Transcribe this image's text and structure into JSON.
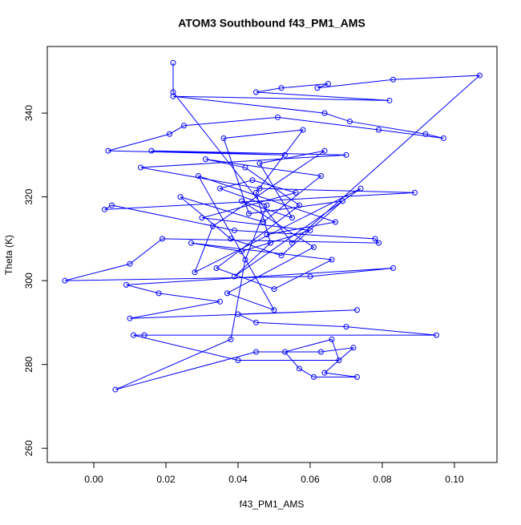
{
  "chart_data": {
    "type": "line",
    "markers": "open-circle",
    "color": "#0000ff",
    "title": "ATOM3 Southbound f43_PM1_AMS",
    "x_label": "f43_PM1_AMS",
    "y_label": "Theta (K)",
    "xlim": [
      -0.0129,
      0.1118
    ],
    "ylim": [
      256.6,
      355.9
    ],
    "xticks": [
      {
        "value": 0,
        "label": "0.00"
      },
      {
        "value": 0.02,
        "label": "0.02"
      },
      {
        "value": 0.04,
        "label": "0.04"
      },
      {
        "value": 0.06,
        "label": "0.06"
      },
      {
        "value": 0.08,
        "label": "0.08"
      },
      {
        "value": 0.1,
        "label": "0.10"
      }
    ],
    "yticks": [
      260,
      280,
      300,
      320,
      340
    ],
    "grid": false,
    "x": [
      0.022,
      0.022,
      0.055,
      0.107,
      0.083,
      0.062,
      0.065,
      0.052,
      0.045,
      0.082,
      0.022,
      0.064,
      0.071,
      0.092,
      0.097,
      0.079,
      0.051,
      0.025,
      0.021,
      0.004,
      0.053,
      0.016,
      0.07,
      0.013,
      0.046,
      0.089,
      0.003,
      0.005,
      0.039,
      0.078,
      0.079,
      0.019,
      0.01,
      -0.008,
      0.06,
      0.083,
      0.009,
      0.018,
      0.035,
      0.01,
      0.073,
      0.04,
      0.045,
      0.07,
      0.095,
      0.014,
      0.011,
      0.04,
      0.068,
      0.066,
      0.053,
      0.057,
      0.061,
      0.073,
      0.064,
      0.072,
      0.063,
      0.045,
      0.006,
      0.038,
      0.042,
      0.048,
      0.035,
      0.044,
      0.056,
      0.03,
      0.06,
      0.041,
      0.027,
      0.066,
      0.05,
      0.034,
      0.057,
      0.042,
      0.031,
      0.063,
      0.047,
      0.024,
      0.038,
      0.052,
      0.069,
      0.043,
      0.036,
      0.058,
      0.045,
      0.049,
      0.039,
      0.074,
      0.028,
      0.033,
      0.064,
      0.046,
      0.055,
      0.041,
      0.061,
      0.037,
      0.05,
      0.029,
      0.067,
      0.048
    ],
    "values": [
      352,
      345,
      309,
      349,
      348,
      346,
      347,
      346,
      345,
      343,
      344,
      340,
      338,
      335,
      334,
      336,
      339,
      337,
      335,
      331,
      330,
      331,
      330,
      327,
      322,
      321,
      317,
      318,
      312,
      310,
      309,
      310,
      304,
      300,
      301,
      303,
      299,
      297,
      295,
      291,
      293,
      292,
      290,
      289,
      287,
      287,
      287,
      281,
      281,
      286,
      283,
      279,
      277,
      277,
      278,
      284,
      283,
      283,
      274,
      286,
      305,
      318,
      322,
      324,
      321,
      315,
      312,
      307,
      309,
      305,
      298,
      303,
      318,
      327,
      329,
      325,
      314,
      320,
      310,
      306,
      319,
      316,
      334,
      336,
      321,
      309,
      301,
      322,
      302,
      313,
      331,
      328,
      315,
      319,
      308,
      297,
      293,
      325,
      314,
      311
    ]
  }
}
